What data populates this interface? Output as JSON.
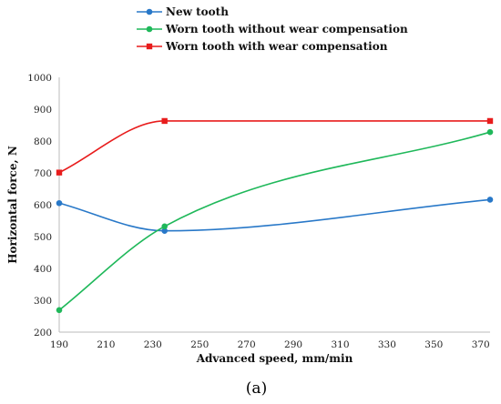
{
  "chart_data": {
    "type": "line",
    "title": "",
    "xlabel": "Advanced speed, mm/min",
    "ylabel": "Horizontal force, N",
    "xlim": [
      190,
      374
    ],
    "ylim": [
      200,
      1000
    ],
    "xticks": [
      190,
      210,
      230,
      250,
      270,
      290,
      310,
      330,
      350,
      370
    ],
    "yticks": [
      200,
      300,
      400,
      500,
      600,
      700,
      800,
      900,
      1000
    ],
    "grid": false,
    "legend_position": "top",
    "smooth": true,
    "series": [
      {
        "name": "New tooth",
        "color": "#2878c8",
        "marker": "circle",
        "x": [
          190,
          235,
          374
        ],
        "y": [
          605,
          518,
          616
        ]
      },
      {
        "name": "Worn tooth without wear compensation",
        "color": "#1fb85a",
        "marker": "circle",
        "x": [
          190,
          235,
          374
        ],
        "y": [
          269,
          532,
          828
        ]
      },
      {
        "name": "Worn tooth with wear compensation",
        "color": "#e81c1c",
        "marker": "square",
        "x": [
          190,
          235,
          374
        ],
        "y": [
          701,
          863,
          863
        ]
      }
    ]
  },
  "caption": "(a)"
}
